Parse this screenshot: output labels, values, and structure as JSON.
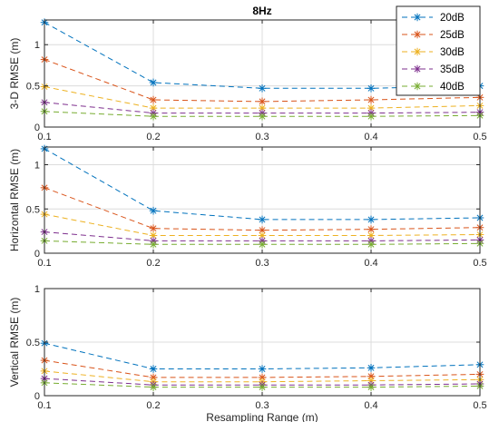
{
  "chart_data": [
    {
      "type": "line",
      "title": "8Hz",
      "xlabel": "",
      "ylabel": "3-D RMSE  (m)",
      "x": [
        0.1,
        0.2,
        0.3,
        0.4,
        0.5
      ],
      "xticks": [
        "0.1",
        "0.2",
        "0.3",
        "0.4",
        "0.5"
      ],
      "xlim": [
        0.1,
        0.5
      ],
      "ylim": [
        0,
        1.3
      ],
      "yticks": [
        "0",
        "0.5",
        "1"
      ],
      "grid": true,
      "legend": "top-right",
      "series": [
        {
          "name": "20dB",
          "values": [
            1.27,
            0.54,
            0.47,
            0.47,
            0.5
          ]
        },
        {
          "name": "25dB",
          "values": [
            0.82,
            0.33,
            0.31,
            0.33,
            0.36
          ]
        },
        {
          "name": "30dB",
          "values": [
            0.49,
            0.23,
            0.23,
            0.23,
            0.26
          ]
        },
        {
          "name": "35dB",
          "values": [
            0.3,
            0.17,
            0.17,
            0.17,
            0.18
          ]
        },
        {
          "name": "40dB",
          "values": [
            0.19,
            0.13,
            0.13,
            0.13,
            0.14
          ]
        }
      ]
    },
    {
      "type": "line",
      "title": "",
      "xlabel": "",
      "ylabel": "Horizontal RMSE  (m)",
      "x": [
        0.1,
        0.2,
        0.3,
        0.4,
        0.5
      ],
      "xticks": [
        "0.1",
        "0.2",
        "0.3",
        "0.4",
        "0.5"
      ],
      "xlim": [
        0.1,
        0.5
      ],
      "ylim": [
        0,
        1.2
      ],
      "yticks": [
        "0",
        "0.5",
        "1"
      ],
      "grid": true,
      "series": [
        {
          "name": "20dB",
          "values": [
            1.18,
            0.48,
            0.38,
            0.38,
            0.4
          ]
        },
        {
          "name": "25dB",
          "values": [
            0.74,
            0.28,
            0.26,
            0.27,
            0.29
          ]
        },
        {
          "name": "30dB",
          "values": [
            0.44,
            0.2,
            0.2,
            0.2,
            0.21
          ]
        },
        {
          "name": "35dB",
          "values": [
            0.24,
            0.14,
            0.14,
            0.14,
            0.15
          ]
        },
        {
          "name": "40dB",
          "values": [
            0.14,
            0.1,
            0.1,
            0.1,
            0.11
          ]
        }
      ]
    },
    {
      "type": "line",
      "title": "",
      "xlabel": "Resampling Range (m)",
      "ylabel": "Vertical RMSE  (m)",
      "x": [
        0.1,
        0.2,
        0.3,
        0.4,
        0.5
      ],
      "xticks": [
        "0.1",
        "0.2",
        "0.3",
        "0.4",
        "0.5"
      ],
      "xlim": [
        0.1,
        0.5
      ],
      "ylim": [
        0,
        1
      ],
      "yticks": [
        "0",
        "0.5",
        "1"
      ],
      "grid": true,
      "series": [
        {
          "name": "20dB",
          "values": [
            0.49,
            0.25,
            0.25,
            0.26,
            0.29
          ]
        },
        {
          "name": "25dB",
          "values": [
            0.33,
            0.17,
            0.17,
            0.18,
            0.2
          ]
        },
        {
          "name": "30dB",
          "values": [
            0.23,
            0.13,
            0.13,
            0.14,
            0.15
          ]
        },
        {
          "name": "35dB",
          "values": [
            0.16,
            0.1,
            0.1,
            0.1,
            0.11
          ]
        },
        {
          "name": "40dB",
          "values": [
            0.12,
            0.08,
            0.08,
            0.08,
            0.09
          ]
        }
      ]
    }
  ],
  "colors": [
    "#0072bd",
    "#d95319",
    "#edb120",
    "#7e2f8e",
    "#77ac30"
  ],
  "marker": "asterisk",
  "line_style": "dashed"
}
